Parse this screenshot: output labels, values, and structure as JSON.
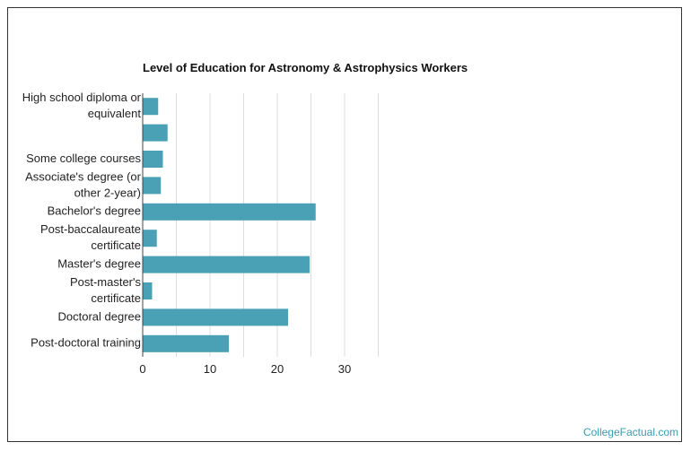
{
  "credit": "CollegeFactual.com",
  "colors": {
    "bar": "#4aa0b4",
    "grid": "#dddddd",
    "axis": "#444444"
  },
  "chart_data": {
    "type": "bar",
    "orientation": "horizontal",
    "title": "Level of Education for Astronomy & Astrophysics Workers",
    "xlabel": "",
    "ylabel": "",
    "xlim": [
      0,
      40
    ],
    "xticks": [
      0,
      10,
      20,
      30
    ],
    "grid": true,
    "categories": [
      [
        "High school diploma or",
        "equivalent"
      ],
      [],
      [
        "Some college courses"
      ],
      [
        "Associate's degree (or",
        "other 2-year)"
      ],
      [
        "Bachelor's degree"
      ],
      [
        "Post-baccalaureate",
        "certificate"
      ],
      [
        "Master's degree"
      ],
      [
        "Post-master's",
        "certificate"
      ],
      [
        "Doctoral degree"
      ],
      [
        "Post-doctoral training"
      ]
    ],
    "values": [
      2.3,
      3.7,
      3.0,
      2.7,
      25.7,
      2.1,
      24.8,
      1.4,
      21.6,
      12.8
    ]
  }
}
